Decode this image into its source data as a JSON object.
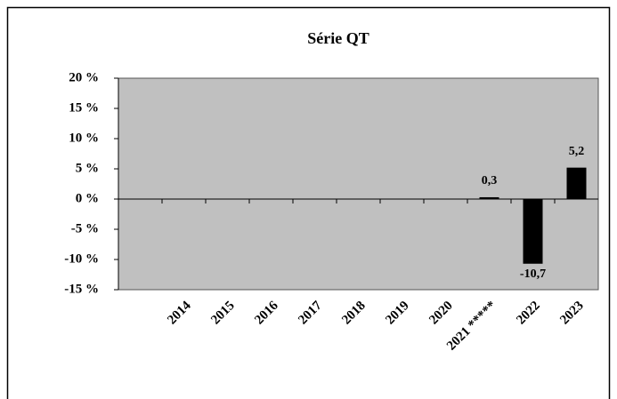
{
  "chart_data": {
    "type": "bar",
    "title": "Série QT",
    "categories": [
      null,
      "2014",
      "2015",
      "2016",
      "2017",
      "2018",
      "2019",
      "2020",
      "2021 *****",
      "2022",
      "2023"
    ],
    "values": [
      null,
      null,
      null,
      null,
      null,
      null,
      null,
      null,
      0.3,
      -10.7,
      5.2
    ],
    "value_labels": [
      null,
      null,
      null,
      null,
      null,
      null,
      null,
      null,
      "0,3",
      "-10,7",
      "5,2"
    ],
    "color": "#000000",
    "ylim": [
      -15,
      20
    ],
    "yticks": [
      {
        "value": -15,
        "label": "-15 %"
      },
      {
        "value": -10,
        "label": "-10 %"
      },
      {
        "value": -5,
        "label": "-5 %"
      },
      {
        "value": 0,
        "label": "0 %"
      },
      {
        "value": 5,
        "label": "5 %"
      },
      {
        "value": 10,
        "label": "10 %"
      },
      {
        "value": 15,
        "label": "15 %"
      },
      {
        "value": 20,
        "label": "20 %"
      }
    ]
  }
}
